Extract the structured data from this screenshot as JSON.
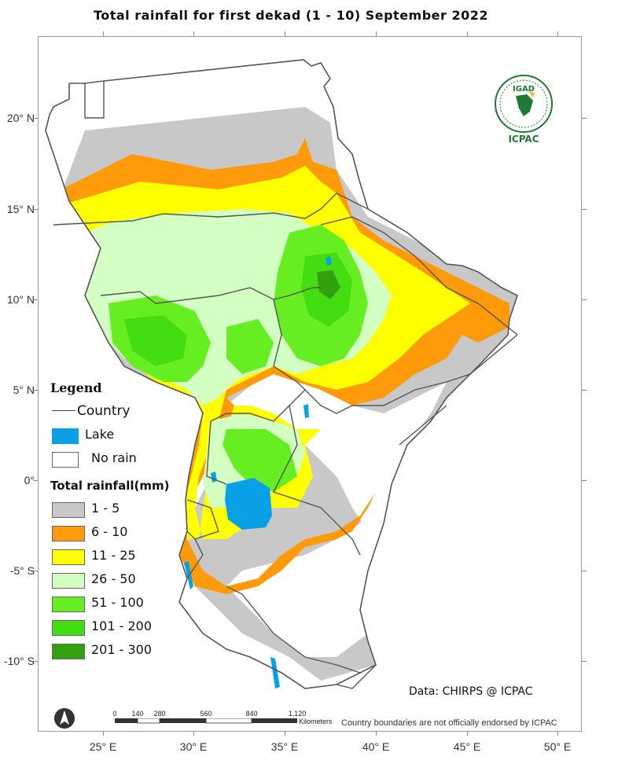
{
  "title": "Total rainfall  for  first  dekad (1 - 10)  September 2022",
  "axes": {
    "lon_labels": [
      "25° E",
      "30° E",
      "35° E",
      "40° E",
      "45° E",
      "50° E"
    ],
    "lat_labels": [
      "20° N",
      "15° N",
      "10° N",
      "5° N",
      "0°",
      "-5° S",
      "-10° S"
    ]
  },
  "legend": {
    "title": "Legend",
    "country_label": "Country",
    "lake_label": "Lake",
    "no_rain_label": "No rain",
    "total_rainfall_title": "Total rainfall(mm)",
    "classes": [
      {
        "label": "1 - 5",
        "color": "#c8c8c8"
      },
      {
        "label": "6 - 10",
        "color": "#ff9a0a"
      },
      {
        "label": "11 - 25",
        "color": "#ffff00"
      },
      {
        "label": "26 - 50",
        "color": "#d4ffc2"
      },
      {
        "label": "51 - 100",
        "color": "#66ee22"
      },
      {
        "label": "101 - 200",
        "color": "#44dd11"
      },
      {
        "label": "201 - 300",
        "color": "#33a010"
      }
    ],
    "lake_color": "#0aa0e6",
    "no_rain_color": "#ffffff"
  },
  "logo": {
    "org_top": "IGAD",
    "org_bottom": "ICPAC",
    "icon": "igad-emblem-icon"
  },
  "credit": "Data: CHIRPS @ ICPAC",
  "disclaimer": "Country boundaries are not officially endorsed by ICPAC",
  "scalebar": {
    "labels": [
      "0",
      "140",
      "280",
      "560",
      "840",
      "1,120"
    ],
    "unit": "Kilometers"
  },
  "north_arrow": {
    "icon": "north-arrow-icon"
  }
}
